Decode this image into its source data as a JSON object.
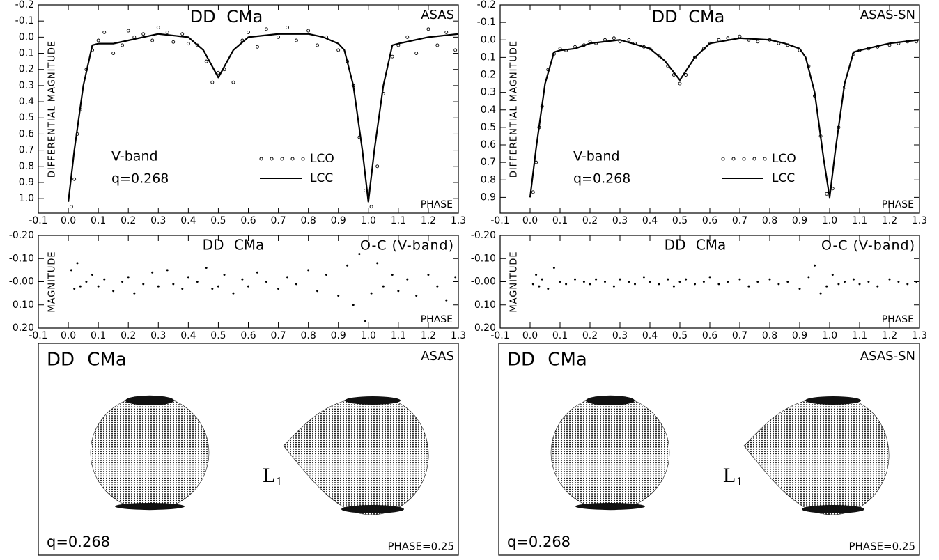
{
  "chart_data": [
    {
      "type": "line",
      "title": "DD CMa",
      "dataset": "ASAS",
      "band": "V-band",
      "q": "q=0.268",
      "ylabel": "DIFFERENTIAL MAGNITUDE",
      "xlabel": "PHASE",
      "xlim": [
        -0.1,
        1.3
      ],
      "ylim": [
        -0.2,
        1.09
      ],
      "y_inverted": true,
      "xticks": [
        -0.1,
        {
          "value": 0,
          "label": "0.0"
        },
        0.1,
        0.2,
        0.3,
        0.4,
        0.5,
        0.6,
        0.7,
        0.8,
        0.9,
        {
          "value": 1,
          "label": "1.0"
        },
        1.1,
        1.2,
        1.3
      ],
      "yticks": [
        -0.2,
        -0.1,
        {
          "value": 0,
          "label": "0.0"
        },
        0.1,
        0.2,
        0.3,
        0.4,
        0.5,
        0.6,
        0.7,
        0.8,
        0.9,
        {
          "value": 1,
          "label": "1.0"
        }
      ],
      "series": [
        {
          "name": "LCO",
          "style": "points",
          "color": "#000000",
          "x": [
            0.01,
            0.02,
            0.03,
            0.04,
            0.06,
            0.08,
            0.1,
            0.12,
            0.15,
            0.18,
            0.2,
            0.22,
            0.25,
            0.28,
            0.3,
            0.33,
            0.35,
            0.38,
            0.4,
            0.43,
            0.46,
            0.48,
            0.5,
            0.52,
            0.55,
            0.58,
            0.6,
            0.63,
            0.66,
            0.7,
            0.73,
            0.76,
            0.8,
            0.83,
            0.86,
            0.9,
            0.93,
            0.95,
            0.97,
            0.99,
            1.01,
            1.03,
            1.05,
            1.08,
            1.1,
            1.13,
            1.16,
            1.2,
            1.23,
            1.26,
            1.29
          ],
          "values": [
            1.05,
            0.88,
            0.6,
            0.45,
            0.2,
            0.08,
            0.02,
            -0.03,
            0.1,
            0.05,
            -0.04,
            0.0,
            -0.02,
            0.02,
            -0.06,
            -0.03,
            0.03,
            -0.02,
            0.04,
            0.05,
            0.15,
            0.28,
            0.22,
            0.2,
            0.28,
            0.02,
            -0.03,
            0.06,
            -0.05,
            0.0,
            -0.06,
            0.02,
            -0.04,
            0.05,
            0.0,
            0.08,
            0.15,
            0.3,
            0.62,
            0.95,
            1.05,
            0.8,
            0.35,
            0.12,
            0.05,
            0.0,
            0.1,
            -0.05,
            0.05,
            -0.03,
            0.08
          ]
        },
        {
          "name": "LCC",
          "style": "line",
          "color": "#000000",
          "x": [
            0,
            0.02,
            0.05,
            0.08,
            0.1,
            0.15,
            0.2,
            0.3,
            0.4,
            0.45,
            0.5,
            0.55,
            0.6,
            0.7,
            0.8,
            0.85,
            0.9,
            0.92,
            0.95,
            0.98,
            1.0,
            1.02,
            1.05,
            1.08,
            1.1,
            1.2,
            1.3
          ],
          "values": [
            1.02,
            0.7,
            0.3,
            0.05,
            0.04,
            0.04,
            0.02,
            -0.02,
            0.0,
            0.08,
            0.25,
            0.08,
            0.0,
            -0.02,
            -0.02,
            0.0,
            0.04,
            0.08,
            0.3,
            0.7,
            1.02,
            0.7,
            0.3,
            0.05,
            0.04,
            0.0,
            -0.02
          ]
        }
      ]
    },
    {
      "type": "line",
      "title": "DD CMa",
      "dataset": "ASAS-SN",
      "band": "V-band",
      "q": "q=0.268",
      "ylabel": "DIFFERENTIAL MAGNITUDE",
      "xlabel": "PHASE",
      "xlim": [
        -0.1,
        1.3
      ],
      "ylim": [
        -0.2,
        0.99
      ],
      "y_inverted": true,
      "xticks": [
        -0.1,
        {
          "value": 0,
          "label": "0.0"
        },
        0.1,
        0.2,
        0.3,
        0.4,
        0.5,
        0.6,
        0.7,
        0.8,
        0.9,
        {
          "value": 1,
          "label": "1.0"
        },
        1.1,
        1.2,
        1.3
      ],
      "yticks": [
        -0.2,
        -0.1,
        {
          "value": 0,
          "label": "0.0"
        },
        0.1,
        0.2,
        0.3,
        0.4,
        0.5,
        0.6,
        0.7,
        0.8,
        0.9
      ],
      "series": [
        {
          "name": "LCO",
          "style": "points",
          "color": "#000000",
          "x": [
            0.01,
            0.02,
            0.03,
            0.04,
            0.06,
            0.08,
            0.1,
            0.12,
            0.15,
            0.18,
            0.2,
            0.22,
            0.25,
            0.28,
            0.3,
            0.33,
            0.35,
            0.38,
            0.4,
            0.43,
            0.46,
            0.48,
            0.5,
            0.52,
            0.55,
            0.58,
            0.6,
            0.63,
            0.66,
            0.7,
            0.73,
            0.76,
            0.8,
            0.83,
            0.86,
            0.9,
            0.93,
            0.95,
            0.97,
            0.99,
            1.01,
            1.03,
            1.05,
            1.08,
            1.1,
            1.13,
            1.16,
            1.2,
            1.23,
            1.26,
            1.29
          ],
          "values": [
            0.87,
            0.7,
            0.5,
            0.38,
            0.17,
            0.08,
            0.05,
            0.06,
            0.04,
            0.03,
            0.01,
            0.02,
            0.0,
            -0.01,
            0.01,
            0.0,
            0.02,
            0.04,
            0.05,
            0.09,
            0.15,
            0.2,
            0.25,
            0.2,
            0.1,
            0.05,
            0.02,
            0.0,
            -0.01,
            -0.02,
            0.0,
            0.01,
            0.0,
            0.02,
            0.03,
            0.06,
            0.15,
            0.32,
            0.55,
            0.88,
            0.85,
            0.5,
            0.27,
            0.08,
            0.06,
            0.05,
            0.04,
            0.03,
            0.02,
            0.01,
            0.01
          ]
        },
        {
          "name": "LCC",
          "style": "line",
          "color": "#000000",
          "x": [
            0,
            0.02,
            0.05,
            0.08,
            0.1,
            0.15,
            0.2,
            0.3,
            0.4,
            0.45,
            0.5,
            0.55,
            0.6,
            0.7,
            0.8,
            0.85,
            0.9,
            0.92,
            0.95,
            0.98,
            1.0,
            1.02,
            1.05,
            1.08,
            1.1,
            1.2,
            1.3
          ],
          "values": [
            0.9,
            0.62,
            0.25,
            0.07,
            0.06,
            0.05,
            0.02,
            0.0,
            0.05,
            0.12,
            0.23,
            0.1,
            0.02,
            -0.01,
            0.0,
            0.02,
            0.05,
            0.1,
            0.3,
            0.68,
            0.9,
            0.62,
            0.25,
            0.07,
            0.06,
            0.02,
            0.0
          ]
        }
      ]
    },
    {
      "type": "scatter",
      "title": "DD CMa",
      "subtitle": "O-C (V-band)",
      "ylabel": "MAGNITUDE",
      "xlabel": "PHASE",
      "color": "#000000",
      "xlim": [
        -0.1,
        1.3
      ],
      "ylim": [
        -0.2,
        0.2
      ],
      "y_inverted": true,
      "xticks": [
        -0.1,
        {
          "value": 0,
          "label": "0.0"
        },
        0.1,
        0.2,
        0.3,
        0.4,
        0.5,
        0.6,
        0.7,
        0.8,
        0.9,
        {
          "value": 1,
          "label": "1.0"
        },
        1.1,
        1.2,
        1.3
      ],
      "yticks": [
        {
          "value": -0.2,
          "label": "-0.20"
        },
        {
          "value": -0.1,
          "label": "-0.10"
        },
        {
          "value": 0,
          "label": "-0.00"
        },
        {
          "value": 0.1,
          "label": "0.10"
        },
        {
          "value": 0.2,
          "label": "0.20"
        }
      ],
      "x": [
        0.01,
        0.02,
        0.03,
        0.04,
        0.06,
        0.08,
        0.1,
        0.12,
        0.15,
        0.18,
        0.2,
        0.22,
        0.25,
        0.28,
        0.3,
        0.33,
        0.35,
        0.38,
        0.4,
        0.43,
        0.46,
        0.48,
        0.5,
        0.52,
        0.55,
        0.58,
        0.6,
        0.63,
        0.66,
        0.7,
        0.73,
        0.76,
        0.8,
        0.83,
        0.86,
        0.9,
        0.93,
        0.95,
        0.97,
        0.99,
        1.01,
        1.03,
        1.05,
        1.08,
        1.1,
        1.13,
        1.16,
        1.2,
        1.23,
        1.26,
        1.29
      ],
      "values": [
        -0.05,
        0.03,
        -0.08,
        0.02,
        0.0,
        -0.03,
        0.02,
        -0.01,
        0.04,
        0.0,
        -0.02,
        0.05,
        0.01,
        -0.04,
        0.02,
        -0.05,
        0.01,
        0.03,
        -0.02,
        0.0,
        -0.06,
        0.03,
        0.02,
        -0.03,
        0.05,
        -0.01,
        0.02,
        -0.04,
        0.0,
        0.03,
        -0.02,
        0.01,
        -0.05,
        0.04,
        -0.03,
        0.06,
        -0.07,
        0.1,
        -0.12,
        0.17,
        0.05,
        -0.08,
        0.02,
        -0.03,
        0.04,
        -0.01,
        0.06,
        -0.03,
        0.02,
        0.08,
        -0.02
      ]
    },
    {
      "type": "scatter",
      "title": "DD CMa",
      "subtitle": "O-C (V-band)",
      "ylabel": "MAGNITUDE",
      "xlabel": "PHASE",
      "color": "#000000",
      "xlim": [
        -0.1,
        1.3
      ],
      "ylim": [
        -0.2,
        0.2
      ],
      "y_inverted": true,
      "xticks": [
        -0.1,
        {
          "value": 0,
          "label": "0.0"
        },
        0.1,
        0.2,
        0.3,
        0.4,
        0.5,
        0.6,
        0.7,
        0.8,
        0.9,
        {
          "value": 1,
          "label": "1.0"
        },
        1.1,
        1.2,
        1.3
      ],
      "yticks": [
        {
          "value": -0.2,
          "label": "-0.20"
        },
        {
          "value": -0.1,
          "label": "-0.10"
        },
        {
          "value": 0,
          "label": "-0.00"
        },
        {
          "value": 0.1,
          "label": "0.10"
        },
        {
          "value": 0.2,
          "label": "0.20"
        }
      ],
      "x": [
        0.01,
        0.02,
        0.03,
        0.04,
        0.06,
        0.08,
        0.1,
        0.12,
        0.15,
        0.18,
        0.2,
        0.22,
        0.25,
        0.28,
        0.3,
        0.33,
        0.35,
        0.38,
        0.4,
        0.43,
        0.46,
        0.48,
        0.5,
        0.52,
        0.55,
        0.58,
        0.6,
        0.63,
        0.66,
        0.7,
        0.73,
        0.76,
        0.8,
        0.83,
        0.86,
        0.9,
        0.93,
        0.95,
        0.97,
        0.99,
        1.01,
        1.03,
        1.05,
        1.08,
        1.1,
        1.13,
        1.16,
        1.2,
        1.23,
        1.26,
        1.29
      ],
      "values": [
        0.01,
        -0.03,
        0.02,
        -0.01,
        0.03,
        -0.06,
        0.0,
        0.01,
        -0.01,
        0.0,
        0.01,
        -0.01,
        0.0,
        0.02,
        -0.01,
        0.0,
        0.01,
        -0.02,
        0.0,
        0.01,
        -0.01,
        0.02,
        0.0,
        -0.01,
        0.01,
        0.0,
        -0.02,
        0.01,
        0.0,
        -0.01,
        0.02,
        0.0,
        -0.01,
        0.01,
        0.0,
        0.03,
        -0.02,
        -0.07,
        0.05,
        0.02,
        -0.03,
        0.01,
        0.0,
        -0.01,
        0.01,
        0.0,
        0.02,
        -0.01,
        0.0,
        0.01,
        0.0
      ]
    },
    {
      "type": "model",
      "title": "DD CMa",
      "dataset": "ASAS",
      "q": "q=0.268",
      "phase": "PHASE=0.25",
      "lagrange": "L",
      "lagrange_sub": "1"
    },
    {
      "type": "model",
      "title": "DD CMa",
      "dataset": "ASAS-SN",
      "q": "q=0.268",
      "phase": "PHASE=0.25",
      "lagrange": "L",
      "lagrange_sub": "1"
    }
  ]
}
